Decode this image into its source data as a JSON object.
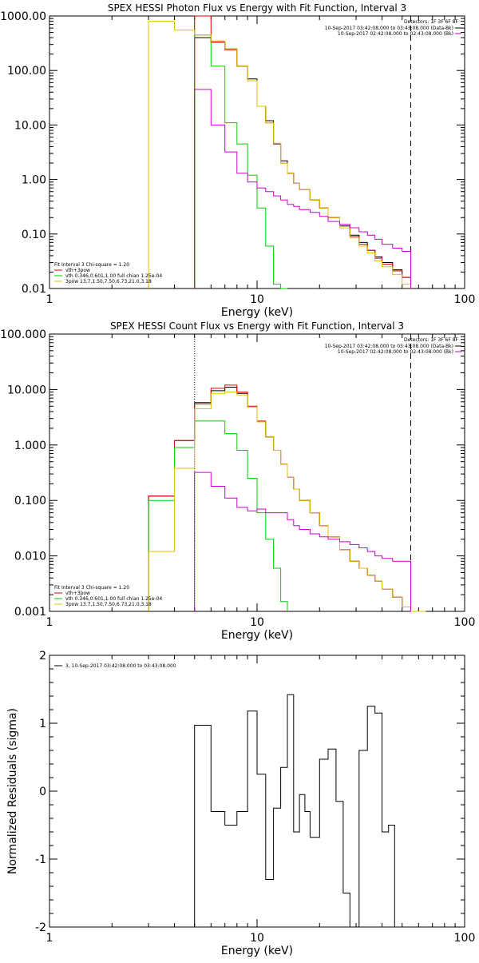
{
  "panels": [
    {
      "id": "photon",
      "title": "SPEX HESSI Photon Flux vs Energy with Fit Function, Interval 3",
      "xlabel": "Energy (keV)",
      "ylabel": "",
      "ylog": true,
      "xlim": [
        1,
        100
      ],
      "ylim": [
        0.01,
        1000
      ],
      "ytick_labels": [
        "0.01",
        "0.10",
        "1.00",
        "10.00",
        "100.00",
        "1000.00"
      ],
      "yticks": [
        0.01,
        0.1,
        1,
        10,
        100,
        1000
      ],
      "xtick_labels": [
        "1",
        "10",
        "100"
      ],
      "xticks": [
        1,
        10,
        100
      ],
      "detectors": "Detectors: 1F 3F 6F 8F",
      "legend_right": [
        {
          "text": "10-Sep-2017 03:42:08.000 to 03:43:08.000 (Data-Bk)",
          "color": "#000000"
        },
        {
          "text": "10-Sep-2017 02:42:08.000 to 02:43:08.000 (Bk)",
          "color": "#cc00cc"
        }
      ],
      "legend_left": [
        {
          "text": "Fit Interval 3   Chi-square = 1.20",
          "color": "#000000",
          "line": false
        },
        {
          "text": "vth+3pow",
          "color": "#e00000",
          "line": true
        },
        {
          "text": "vth 0.346,0.601,1.00  full chian 1.25e-04",
          "color": "#00cc00",
          "line": true
        },
        {
          "text": "3pow 13.7,1.50,7.50,6.73,21.0,3.18",
          "color": "#e0c000",
          "line": true
        }
      ],
      "vlines": [
        {
          "x": 5,
          "style": "dotted"
        },
        {
          "x": 55,
          "style": "dashed"
        }
      ]
    },
    {
      "id": "count",
      "title": "SPEX HESSI Count Flux vs Energy with Fit Function, Interval 3",
      "xlabel": "Energy (keV)",
      "ylabel": "",
      "ylog": true,
      "xlim": [
        1,
        100
      ],
      "ylim": [
        0.001,
        100
      ],
      "ytick_labels": [
        "0.001",
        "0.010",
        "0.100",
        "1.000",
        "10.000",
        "100.000"
      ],
      "yticks": [
        0.001,
        0.01,
        0.1,
        1,
        10,
        100
      ],
      "xtick_labels": [
        "1",
        "10",
        "100"
      ],
      "xticks": [
        1,
        10,
        100
      ],
      "detectors": "Detectors: 1F 3F 6F 8F",
      "legend_right": [
        {
          "text": "10-Sep-2017 03:42:08.000 to 03:43:08.000 (Data-Bk)",
          "color": "#000000"
        },
        {
          "text": "10-Sep-2017 02:42:08.000 to 02:43:08.000 (Bk)",
          "color": "#cc00cc"
        }
      ],
      "legend_left": [
        {
          "text": "Fit Interval 3   Chi-square = 1.20",
          "color": "#000000",
          "line": false
        },
        {
          "text": "vth+3pow",
          "color": "#e00000",
          "line": true
        },
        {
          "text": "vth 0.346,0.601,1.00  full chian 1.25e-04",
          "color": "#00cc00",
          "line": true
        },
        {
          "text": "3pow 13.7,1.50,7.50,6.73,21.0,3.18",
          "color": "#e0c000",
          "line": true
        }
      ],
      "vlines": [
        {
          "x": 5,
          "style": "dotted"
        },
        {
          "x": 55,
          "style": "dashed"
        }
      ]
    },
    {
      "id": "resid",
      "title": "",
      "xlabel": "Energy (keV)",
      "ylabel": "Normalized Residuals (sigma)",
      "ylog": false,
      "xlim": [
        1,
        100
      ],
      "ylim": [
        -2,
        2
      ],
      "ytick_labels": [
        "-2",
        "-1",
        "0",
        "1",
        "2"
      ],
      "yticks": [
        -2,
        -1,
        0,
        1,
        2
      ],
      "xtick_labels": [
        "1",
        "10",
        "100"
      ],
      "xticks": [
        1,
        10,
        100
      ],
      "detectors": "",
      "legend_right": [],
      "legend_left": [
        {
          "text": "3, 10-Sep-2017 03:42:08.000 to 03:43:08.000",
          "color": "#000000",
          "line": true
        }
      ],
      "vlines": []
    }
  ],
  "chart_data": [
    {
      "type": "line",
      "step": true,
      "title": "SPEX HESSI Photon Flux vs Energy with Fit Function, Interval 3",
      "xlabel": "Energy (keV)",
      "x_scale": "log",
      "y_scale": "log",
      "xlim": [
        1,
        100
      ],
      "ylim": [
        0.01,
        1000
      ],
      "bin_edges": [
        3.0,
        4.0,
        5.0,
        6.0,
        7.0,
        8.0,
        9.0,
        10.0,
        11.0,
        12.0,
        13.0,
        14.0,
        15.0,
        16.0,
        18.0,
        20.0,
        22.0,
        25.0,
        28.0,
        31.0,
        34.0,
        37.0,
        40.0,
        45.0,
        50.0,
        55.0
      ],
      "series": [
        {
          "name": "Data-Bk",
          "color": "#000000",
          "values": [
            null,
            null,
            400,
            330,
            250,
            120,
            70,
            22,
            12,
            4.5,
            2.2,
            1.3,
            0.85,
            0.65,
            0.42,
            0.3,
            0.2,
            0.14,
            0.095,
            0.07,
            0.05,
            0.038,
            0.03,
            0.022,
            0.016
          ]
        },
        {
          "name": "vth+3pow",
          "color": "#e00000",
          "values": [
            null,
            null,
            1000,
            330,
            240,
            120,
            65,
            22,
            11,
            4.6,
            2.0,
            1.3,
            0.85,
            0.65,
            0.42,
            0.3,
            0.2,
            0.13,
            0.09,
            0.065,
            0.05,
            0.036,
            0.028,
            0.021,
            0.016
          ]
        },
        {
          "name": "vth",
          "color": "#00cc00",
          "values": [
            null,
            null,
            450,
            120,
            11,
            4.5,
            1.2,
            0.3,
            0.06,
            0.012,
            0.003,
            null,
            null,
            null,
            null,
            null,
            null,
            null,
            null,
            null,
            null,
            null,
            null,
            null,
            null
          ]
        },
        {
          "name": "3pow",
          "color": "#e0c000",
          "values": [
            800,
            550,
            450,
            350,
            250,
            120,
            65,
            22,
            11,
            4.6,
            2.0,
            1.3,
            0.85,
            0.65,
            0.42,
            0.3,
            0.2,
            0.13,
            0.085,
            0.06,
            0.045,
            0.032,
            0.025,
            0.018,
            0.012
          ]
        },
        {
          "name": "Bk",
          "color": "#cc00cc",
          "values": [
            null,
            null,
            45,
            10,
            3.2,
            1.3,
            0.9,
            0.7,
            0.6,
            0.5,
            0.42,
            0.35,
            0.32,
            0.28,
            0.25,
            0.21,
            0.17,
            0.15,
            0.13,
            0.11,
            0.095,
            0.08,
            0.065,
            0.055,
            0.048
          ]
        }
      ],
      "vlines": [
        5,
        55
      ]
    },
    {
      "type": "line",
      "step": true,
      "title": "SPEX HESSI Count Flux vs Energy with Fit Function, Interval 3",
      "xlabel": "Energy (keV)",
      "x_scale": "log",
      "y_scale": "log",
      "xlim": [
        1,
        100
      ],
      "ylim": [
        0.001,
        100
      ],
      "bin_edges": [
        3.0,
        4.0,
        5.0,
        6.0,
        7.0,
        8.0,
        9.0,
        10.0,
        11.0,
        12.0,
        13.0,
        14.0,
        15.0,
        16.0,
        18.0,
        20.0,
        22.0,
        25.0,
        28.0,
        31.0,
        34.0,
        37.0,
        40.0,
        45.0,
        50.0,
        55.0,
        60.0,
        65.0
      ],
      "series": [
        {
          "name": "Data-Bk",
          "color": "#000000",
          "values": [
            0.12,
            1.2,
            5.8,
            9.5,
            11,
            8.5,
            4.8,
            2.6,
            1.4,
            0.8,
            0.45,
            0.26,
            0.16,
            0.1,
            0.06,
            0.035,
            0.022,
            0.013,
            0.008,
            0.006,
            0.0045,
            0.0035,
            0.0025,
            0.0018,
            0.0012,
            null,
            null
          ]
        },
        {
          "name": "vth+3pow",
          "color": "#e00000",
          "values": [
            0.12,
            1.2,
            5.5,
            10.5,
            12,
            9,
            5,
            2.7,
            1.4,
            0.8,
            0.45,
            0.26,
            0.16,
            0.1,
            0.06,
            0.035,
            0.022,
            0.013,
            0.008,
            0.006,
            0.0045,
            0.0035,
            0.0025,
            0.0018,
            0.0012,
            null,
            null
          ]
        },
        {
          "name": "vth",
          "color": "#00cc00",
          "values": [
            0.1,
            0.9,
            2.7,
            2.7,
            1.6,
            0.8,
            0.25,
            0.06,
            0.02,
            0.006,
            0.0015,
            null,
            null,
            null,
            null,
            null,
            null,
            null,
            null,
            null,
            null,
            null,
            null,
            null,
            null,
            null,
            null
          ]
        },
        {
          "name": "3pow",
          "color": "#e0c000",
          "values": [
            0.012,
            0.38,
            4.5,
            8.5,
            9,
            8,
            4.8,
            2.6,
            1.4,
            0.8,
            0.45,
            0.26,
            0.16,
            0.1,
            0.06,
            0.035,
            0.022,
            0.013,
            0.008,
            0.006,
            0.0045,
            0.0035,
            0.0025,
            0.0018,
            0.0012,
            0.0008,
            0.0005
          ]
        },
        {
          "name": "Bk",
          "color": "#cc00cc",
          "values": [
            null,
            null,
            0.32,
            0.18,
            0.11,
            0.075,
            0.065,
            0.07,
            0.06,
            0.06,
            0.06,
            0.045,
            0.035,
            0.03,
            0.025,
            0.022,
            0.02,
            0.018,
            0.016,
            0.014,
            0.012,
            0.01,
            0.009,
            0.008,
            0.008,
            null,
            null
          ]
        }
      ],
      "vlines": [
        5,
        55
      ]
    },
    {
      "type": "line",
      "step": true,
      "title": "",
      "xlabel": "Energy (keV)",
      "ylabel": "Normalized Residuals (sigma)",
      "x_scale": "log",
      "y_scale": "linear",
      "xlim": [
        1,
        100
      ],
      "ylim": [
        -2,
        2
      ],
      "bin_edges": [
        5.0,
        6.0,
        7.0,
        8.0,
        9.0,
        10.0,
        11.0,
        12.0,
        13.0,
        14.0,
        15.0,
        16.0,
        17.0,
        18.0,
        20.0,
        22.0,
        24.0,
        26.0,
        28.0,
        31.0,
        34.0,
        37.0,
        40.0,
        43.0,
        46.0,
        50.0,
        55.0
      ],
      "series": [
        {
          "name": "3, 10-Sep-2017 03:42:08.000 to 03:43:08.000",
          "color": "#000000",
          "values": [
            0.97,
            -0.3,
            -0.5,
            -0.3,
            1.18,
            0.25,
            -1.3,
            -0.25,
            0.35,
            1.42,
            -0.6,
            -0.05,
            -0.3,
            -0.68,
            0.47,
            0.62,
            -0.15,
            -1.5,
            -2.0,
            0.6,
            1.25,
            1.15,
            -0.6,
            -0.5,
            -2.0,
            -2.0
          ]
        }
      ],
      "vlines": []
    }
  ]
}
